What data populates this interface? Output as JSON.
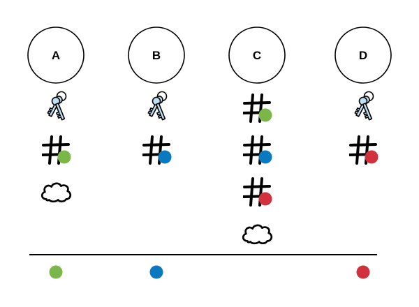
{
  "colors": {
    "green": "#7ab648",
    "blue": "#0a79bf",
    "red": "#d1303d",
    "line": "#000000",
    "key_fill": "#bfe0f5"
  },
  "columns": [
    {
      "label": "A",
      "items": [
        {
          "icon": "keys-icon"
        },
        {
          "icon": "hash-icon",
          "dot": "green"
        },
        {
          "icon": "cloud-icon"
        }
      ],
      "bottom_dot": "green"
    },
    {
      "label": "B",
      "items": [
        {
          "icon": "keys-icon"
        },
        {
          "icon": "hash-icon",
          "dot": "blue"
        }
      ],
      "bottom_dot": "blue"
    },
    {
      "label": "C",
      "items": [
        {
          "icon": "hash-icon",
          "dot": "green"
        },
        {
          "icon": "hash-icon",
          "dot": "blue"
        },
        {
          "icon": "hash-icon",
          "dot": "red"
        },
        {
          "icon": "cloud-icon"
        }
      ],
      "bottom_dot": null
    },
    {
      "label": "D",
      "items": [
        {
          "icon": "keys-icon"
        },
        {
          "icon": "hash-icon",
          "dot": "red"
        }
      ],
      "bottom_dot": "red"
    }
  ]
}
